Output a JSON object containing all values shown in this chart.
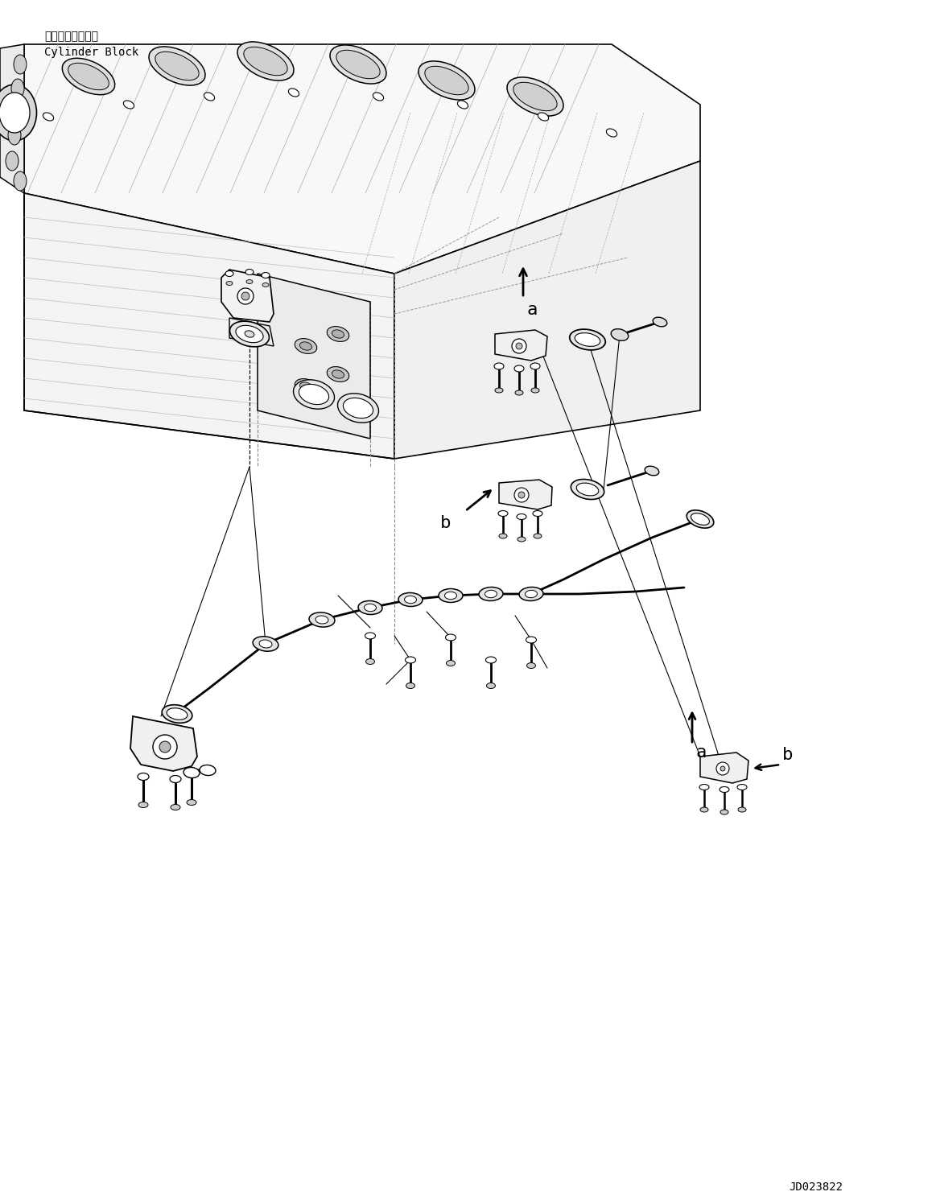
{
  "figure_width": 11.63,
  "figure_height": 14.91,
  "dpi": 100,
  "background_color": "#ffffff",
  "label_top_left_line1": "シリンダブロック",
  "label_top_left_line2": "Cylinder Block",
  "part_id": "JD023822",
  "line_color": "#000000",
  "text_color": "#000000",
  "font_size_label": 14,
  "font_size_id": 10,
  "font_size_top": 10,
  "font_size_ab": 16
}
